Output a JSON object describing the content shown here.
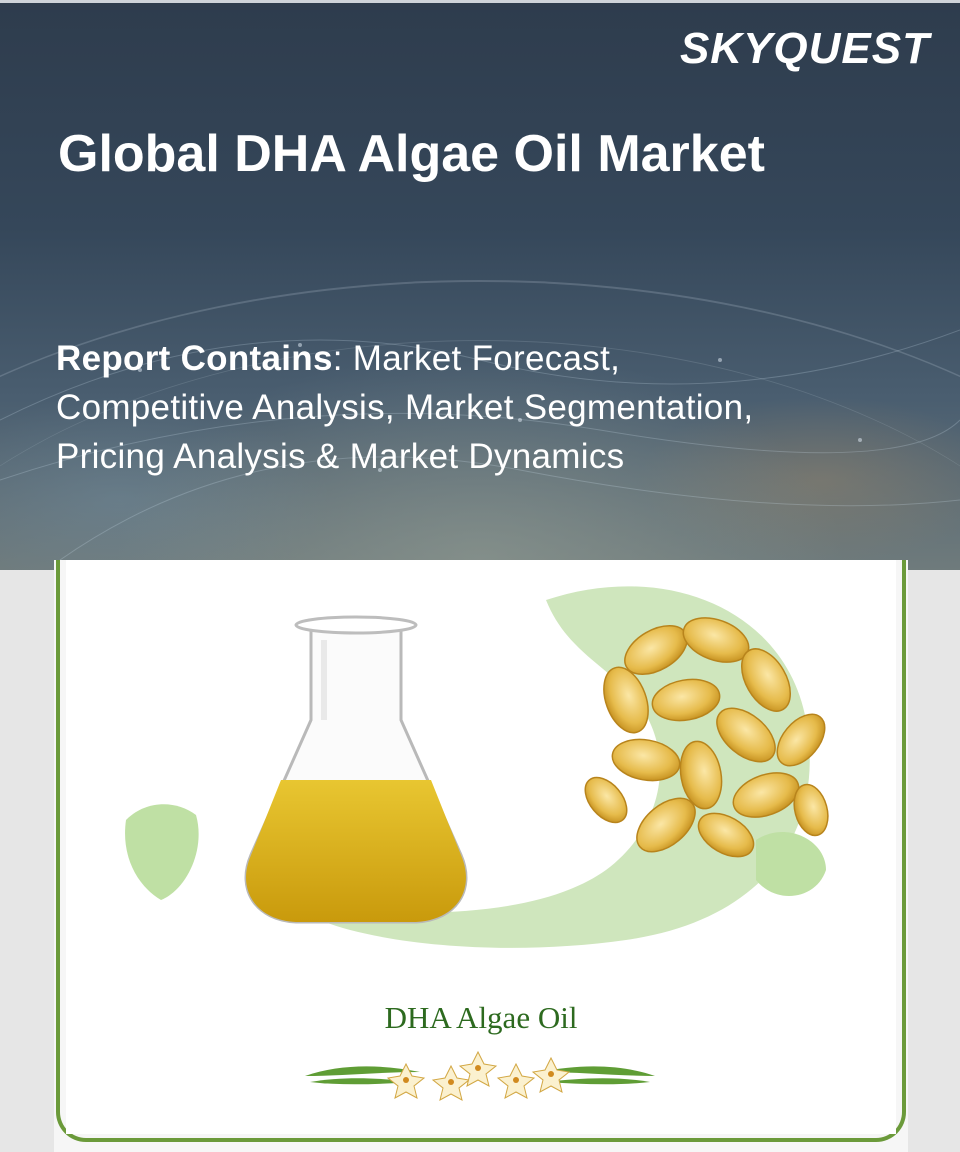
{
  "brand": {
    "logo_text": "SKYQUEST"
  },
  "header": {
    "title": "Global DHA Algae Oil Market"
  },
  "report": {
    "label": "Report Contains",
    "separator": ":",
    "details": " Market Forecast, Competitive Analysis, Market Segmentation, Pricing Analysis & Market Dynamics"
  },
  "product": {
    "caption": "DHA Algae Oil"
  },
  "colors": {
    "frame": "#6b9a3a",
    "caption": "#2d6a1f",
    "oil": "#d8b21a",
    "leaf": "#5f9d35"
  }
}
